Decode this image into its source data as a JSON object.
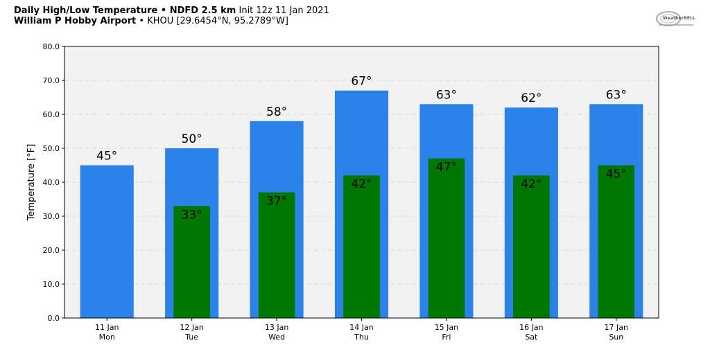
{
  "header": {
    "title_bold": "Daily High/Low Temperature • NDFD 2.5 km",
    "title_light": " Init 12z 11 Jan 2021",
    "subtitle_bold": "William P Hobby Airport",
    "subtitle_light": " • KHOU [29.6454°N, 95.2789°W]"
  },
  "logo": {
    "text": "WeatherBELL"
  },
  "chart_data": {
    "type": "bar",
    "categories": [
      "11 Jan",
      "12 Jan",
      "13 Jan",
      "14 Jan",
      "15 Jan",
      "16 Jan",
      "17 Jan"
    ],
    "category_sublabels": [
      "Mon",
      "Tue",
      "Wed",
      "Thu",
      "Fri",
      "Sat",
      "Sun"
    ],
    "series": [
      {
        "name": "",
        "values": [
          45,
          50,
          58,
          67,
          63,
          62,
          63
        ],
        "labels": [
          "45°",
          "50°",
          "58°",
          "67°",
          "63°",
          "62°",
          "63°"
        ],
        "color": "#2b83e9"
      },
      {
        "name": "",
        "values": [
          null,
          33,
          37,
          42,
          47,
          42,
          45
        ],
        "labels": [
          "",
          "33°",
          "37°",
          "42°",
          "47°",
          "42°",
          "45°"
        ],
        "color": "#007800"
      }
    ],
    "ylabel": "Temperature [°F]",
    "ylim": [
      0,
      80
    ],
    "yticks": [
      "0.0",
      "10.0",
      "20.0",
      "30.0",
      "40.0",
      "50.0",
      "60.0",
      "70.0",
      "80.0"
    ],
    "grid": true,
    "plot_background": "#f2f2f2"
  }
}
